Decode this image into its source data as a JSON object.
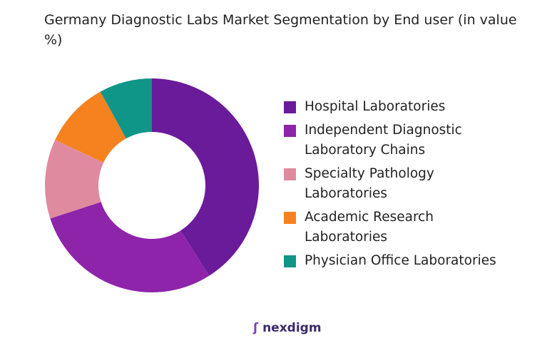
{
  "chart_data": {
    "type": "donut",
    "title": "Germany Diagnostic Labs Market Segmentation by End user (in value %)",
    "categories": [
      "Hospital Laboratories",
      "Independent Diagnostic Laboratory Chains",
      "Specialty Pathology Laboratories",
      "Academic Research Laboratories",
      "Physician Office Laboratories"
    ],
    "values": [
      41,
      29,
      12,
      10,
      8
    ],
    "colors": [
      "#6a1b9a",
      "#8e24aa",
      "#e08aa0",
      "#f5821f",
      "#0f9688"
    ],
    "legend": "right"
  },
  "brand": "nexdigm"
}
